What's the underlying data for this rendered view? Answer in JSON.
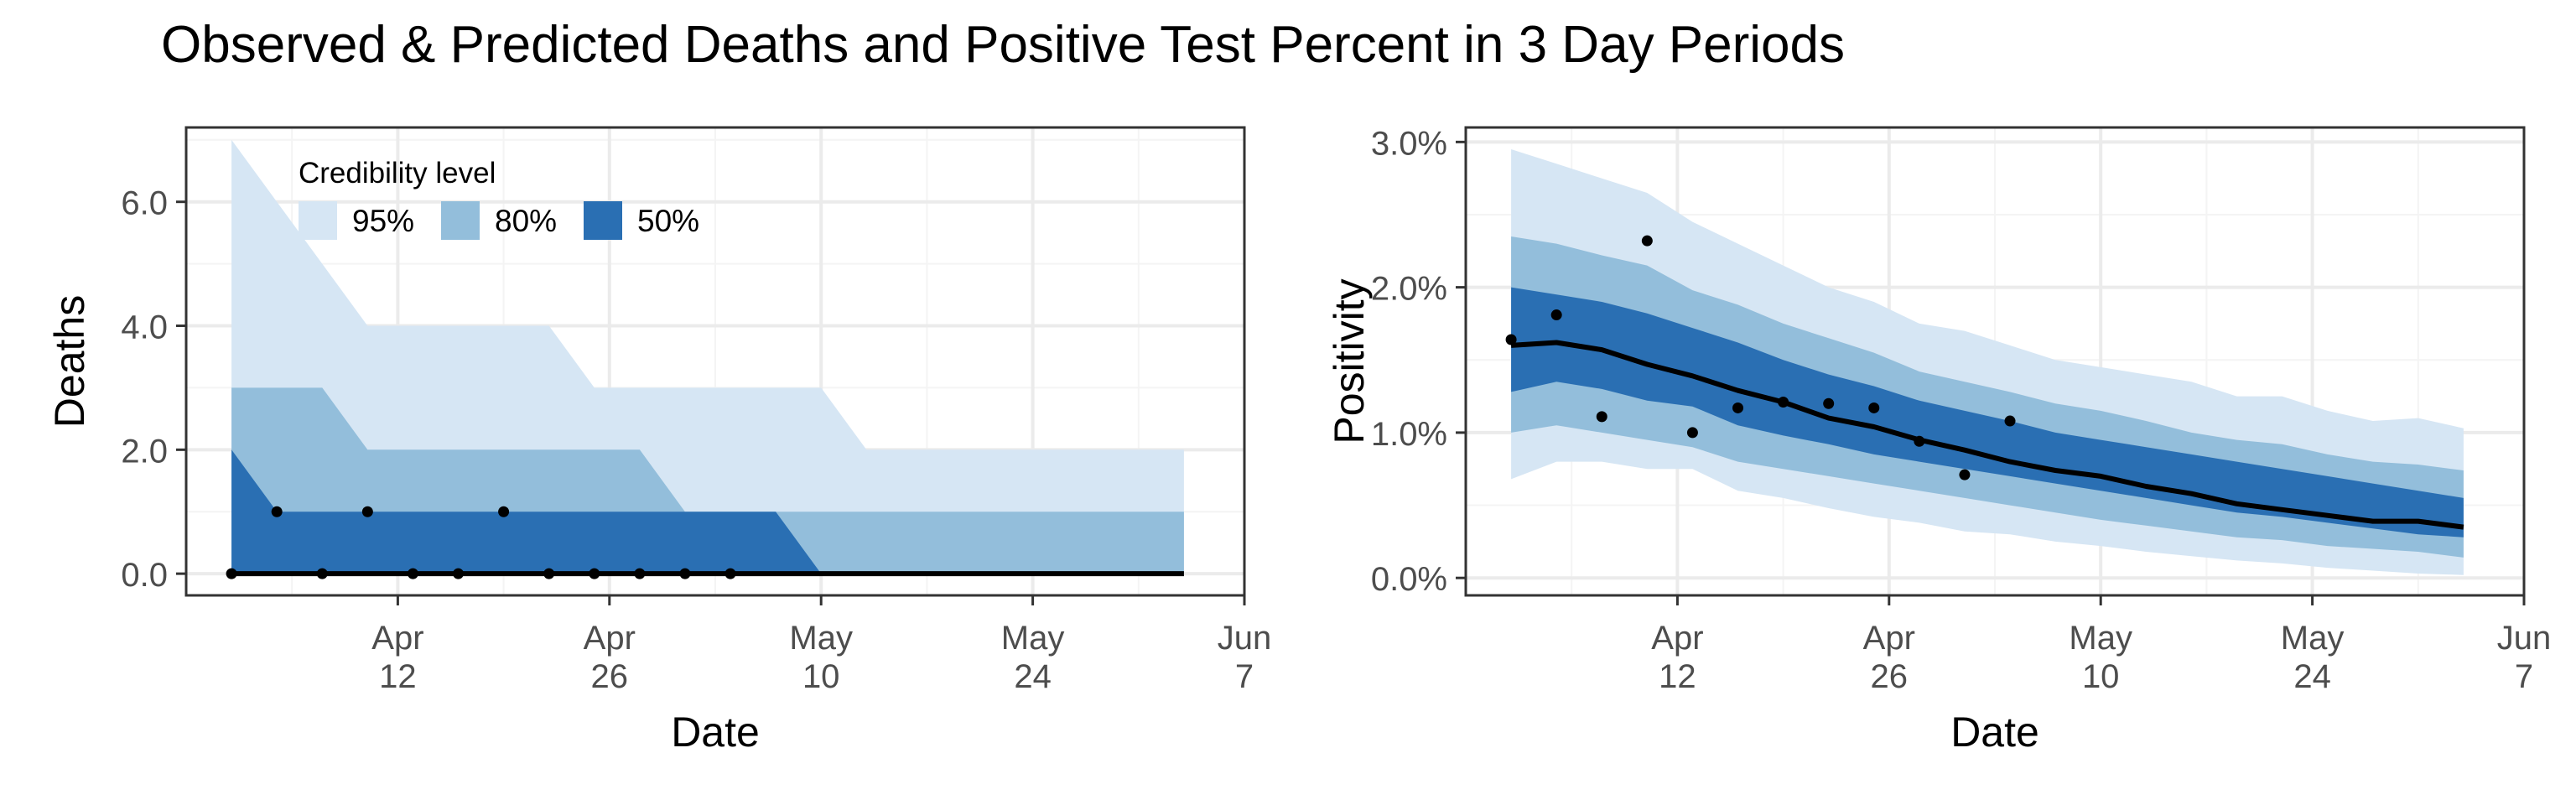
{
  "figure": {
    "title": "Observed & Predicted Deaths and Positive Test Percent in 3 Day Periods"
  },
  "colors": {
    "band95": "#d6e6f4",
    "band80": "#93bedb",
    "band50": "#2a6fb3",
    "median": "#000000",
    "points": "#000000",
    "grid_major": "#ebebeb",
    "grid_minor": "#f4f4f4",
    "panel_border": "#333333",
    "axis_text": "#4d4d4d"
  },
  "legend": {
    "title": "Credibility level",
    "items": [
      {
        "label": "95%",
        "color_key": "band95"
      },
      {
        "label": "80%",
        "color_key": "band80"
      },
      {
        "label": "50%",
        "color_key": "band50"
      }
    ]
  },
  "chart_data": [
    {
      "id": "deaths",
      "type": "area",
      "title": "",
      "xlabel": "Date",
      "ylabel": "Deaths",
      "xlim": [
        "2020-03-29",
        "2020-06-07"
      ],
      "ylim": [
        -0.35,
        7.2
      ],
      "x_ticks": [
        {
          "date": "2020-04-12",
          "label": [
            "Apr",
            "12"
          ]
        },
        {
          "date": "2020-04-26",
          "label": [
            "Apr",
            "26"
          ]
        },
        {
          "date": "2020-05-10",
          "label": [
            "May",
            "10"
          ]
        },
        {
          "date": "2020-05-24",
          "label": [
            "May",
            "24"
          ]
        },
        {
          "date": "2020-06-07",
          "label": [
            "Jun",
            "7"
          ]
        }
      ],
      "y_ticks": [
        {
          "value": 0,
          "label": "0.0"
        },
        {
          "value": 2,
          "label": "2.0"
        },
        {
          "value": 4,
          "label": "4.0"
        },
        {
          "value": 6,
          "label": "6.0"
        }
      ],
      "grid": true,
      "legend_placement": "top-left",
      "bands": {
        "x": [
          "2020-04-01",
          "2020-04-04",
          "2020-04-07",
          "2020-04-10",
          "2020-04-13",
          "2020-04-16",
          "2020-04-19",
          "2020-04-22",
          "2020-04-25",
          "2020-04-28",
          "2020-05-01",
          "2020-05-04",
          "2020-05-07",
          "2020-05-10",
          "2020-05-13",
          "2020-05-16",
          "2020-05-19",
          "2020-05-22",
          "2020-05-25",
          "2020-05-28",
          "2020-05-31",
          "2020-06-03"
        ],
        "q95": {
          "low": [
            0,
            0,
            0,
            0,
            0,
            0,
            0,
            0,
            0,
            0,
            0,
            0,
            0,
            0,
            0,
            0,
            0,
            0,
            0,
            0,
            0,
            0
          ],
          "high": [
            7,
            6,
            5,
            4,
            4,
            4,
            4,
            4,
            3,
            3,
            3,
            3,
            3,
            3,
            2,
            2,
            2,
            2,
            2,
            2,
            2,
            2
          ]
        },
        "q80": {
          "low": [
            0,
            0,
            0,
            0,
            0,
            0,
            0,
            0,
            0,
            0,
            0,
            0,
            0,
            0,
            0,
            0,
            0,
            0,
            0,
            0,
            0,
            0
          ],
          "high": [
            3,
            3,
            3,
            2,
            2,
            2,
            2,
            2,
            2,
            2,
            1,
            1,
            1,
            1,
            1,
            1,
            1,
            1,
            1,
            1,
            1,
            1
          ]
        },
        "q50": {
          "low": [
            0,
            0,
            0,
            0,
            0,
            0,
            0,
            0,
            0,
            0,
            0,
            0,
            0,
            0,
            0,
            0,
            0,
            0,
            0,
            0,
            0,
            0
          ],
          "high": [
            2,
            1,
            1,
            1,
            1,
            1,
            1,
            1,
            1,
            1,
            1,
            1,
            1,
            0,
            0,
            0,
            0,
            0,
            0,
            0,
            0,
            0
          ]
        },
        "median": [
          0,
          0,
          0,
          0,
          0,
          0,
          0,
          0,
          0,
          0,
          0,
          0,
          0,
          0,
          0,
          0,
          0,
          0,
          0,
          0,
          0,
          0
        ]
      },
      "observed": {
        "x": [
          "2020-04-01",
          "2020-04-04",
          "2020-04-07",
          "2020-04-10",
          "2020-04-13",
          "2020-04-16",
          "2020-04-19",
          "2020-04-22",
          "2020-04-25",
          "2020-04-28",
          "2020-05-01",
          "2020-05-04"
        ],
        "y": [
          0,
          1,
          0,
          1,
          0,
          0,
          1,
          0,
          0,
          0,
          0,
          0
        ]
      }
    },
    {
      "id": "positivity",
      "type": "area",
      "title": "",
      "xlabel": "Date",
      "ylabel": "Positivity",
      "xlim": [
        "2020-03-29",
        "2020-06-07"
      ],
      "ylim": [
        -0.12,
        3.1
      ],
      "x_ticks": [
        {
          "date": "2020-04-12",
          "label": [
            "Apr",
            "12"
          ]
        },
        {
          "date": "2020-04-26",
          "label": [
            "Apr",
            "26"
          ]
        },
        {
          "date": "2020-05-10",
          "label": [
            "May",
            "10"
          ]
        },
        {
          "date": "2020-05-24",
          "label": [
            "May",
            "24"
          ]
        },
        {
          "date": "2020-06-07",
          "label": [
            "Jun",
            "7"
          ]
        }
      ],
      "y_ticks": [
        {
          "value": 0,
          "label": "0.0%"
        },
        {
          "value": 1,
          "label": "1.0%"
        },
        {
          "value": 2,
          "label": "2.0%"
        },
        {
          "value": 3,
          "label": "3.0%"
        }
      ],
      "grid": true,
      "bands": {
        "x": [
          "2020-04-01",
          "2020-04-04",
          "2020-04-07",
          "2020-04-10",
          "2020-04-13",
          "2020-04-16",
          "2020-04-19",
          "2020-04-22",
          "2020-04-25",
          "2020-04-28",
          "2020-05-01",
          "2020-05-04",
          "2020-05-07",
          "2020-05-10",
          "2020-05-13",
          "2020-05-16",
          "2020-05-19",
          "2020-05-22",
          "2020-05-25",
          "2020-05-28",
          "2020-05-31",
          "2020-06-03"
        ],
        "q95": {
          "low": [
            0.68,
            0.8,
            0.8,
            0.75,
            0.75,
            0.6,
            0.55,
            0.48,
            0.42,
            0.38,
            0.32,
            0.3,
            0.25,
            0.22,
            0.18,
            0.15,
            0.12,
            0.1,
            0.07,
            0.05,
            0.03,
            0.02
          ],
          "high": [
            2.95,
            2.85,
            2.75,
            2.65,
            2.45,
            2.3,
            2.15,
            2.0,
            1.9,
            1.75,
            1.7,
            1.6,
            1.5,
            1.45,
            1.4,
            1.35,
            1.25,
            1.25,
            1.15,
            1.08,
            1.1,
            1.03
          ]
        },
        "q80": {
          "low": [
            1.0,
            1.05,
            1.0,
            0.95,
            0.9,
            0.8,
            0.75,
            0.7,
            0.65,
            0.6,
            0.55,
            0.5,
            0.45,
            0.4,
            0.36,
            0.32,
            0.28,
            0.26,
            0.22,
            0.2,
            0.18,
            0.14
          ],
          "high": [
            2.35,
            2.3,
            2.22,
            2.15,
            1.98,
            1.88,
            1.75,
            1.65,
            1.55,
            1.42,
            1.35,
            1.28,
            1.2,
            1.15,
            1.08,
            1.0,
            0.95,
            0.92,
            0.85,
            0.8,
            0.78,
            0.74
          ]
        },
        "q50": {
          "low": [
            1.28,
            1.35,
            1.3,
            1.22,
            1.18,
            1.05,
            0.98,
            0.92,
            0.85,
            0.8,
            0.75,
            0.7,
            0.65,
            0.6,
            0.55,
            0.5,
            0.45,
            0.42,
            0.38,
            0.34,
            0.3,
            0.28
          ],
          "high": [
            2.0,
            1.95,
            1.9,
            1.82,
            1.72,
            1.62,
            1.5,
            1.4,
            1.32,
            1.22,
            1.15,
            1.08,
            1.0,
            0.95,
            0.9,
            0.85,
            0.8,
            0.75,
            0.7,
            0.65,
            0.6,
            0.55
          ]
        },
        "median": [
          1.6,
          1.62,
          1.57,
          1.47,
          1.39,
          1.29,
          1.21,
          1.1,
          1.04,
          0.95,
          0.88,
          0.8,
          0.74,
          0.7,
          0.63,
          0.58,
          0.51,
          0.47,
          0.43,
          0.39,
          0.39,
          0.35
        ]
      },
      "observed": {
        "x": [
          "2020-04-01",
          "2020-04-04",
          "2020-04-07",
          "2020-04-10",
          "2020-04-13",
          "2020-04-16",
          "2020-04-19",
          "2020-04-22",
          "2020-04-25",
          "2020-04-28",
          "2020-05-01",
          "2020-05-04"
        ],
        "y": [
          1.64,
          1.81,
          1.11,
          2.32,
          1.0,
          1.17,
          1.21,
          1.2,
          1.17,
          0.94,
          0.71,
          1.08
        ]
      }
    }
  ]
}
